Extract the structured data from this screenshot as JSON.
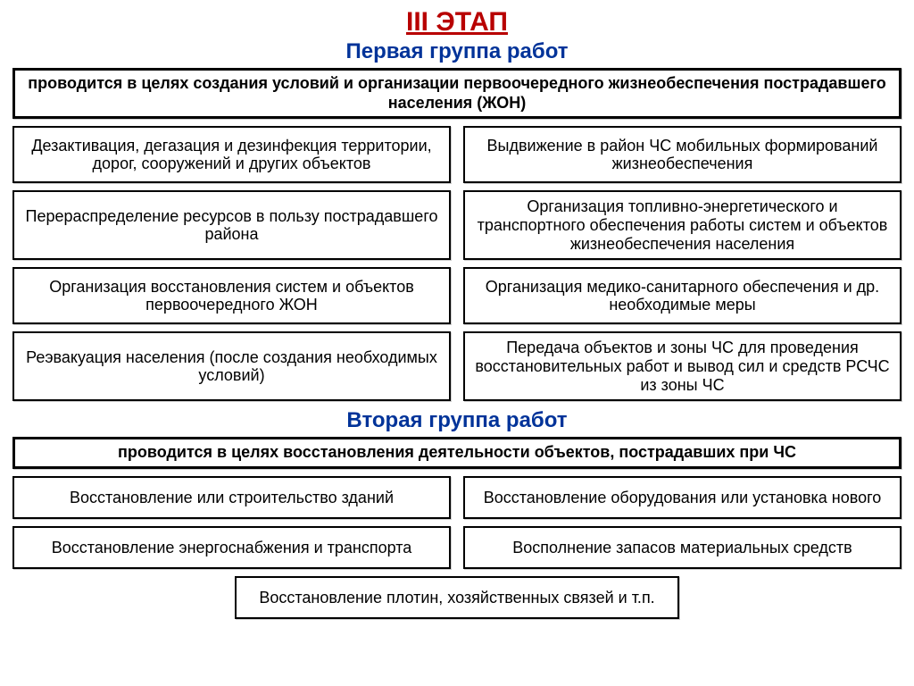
{
  "colors": {
    "title": "#b80000",
    "subtitle": "#003399",
    "border": "#000000",
    "text": "#000000",
    "background": "#ffffff"
  },
  "mainTitle": "III  ЭТАП",
  "group1": {
    "subtitle": "Первая группа работ",
    "header": "проводится в целях создания условий и организации первоочередного жизнеобеспечения пострадавшего населения (ЖОН)",
    "rows": [
      {
        "left": "Дезактивация, дегазация и дезинфекция территории, дорог, сооружений и других объектов",
        "right": "Выдвижение в район ЧС мобильных формирований жизнеобеспечения"
      },
      {
        "left": "Перераспределение ресурсов в пользу пострадавшего района",
        "right": "Организация топливно-энергетического и транспортного обеспечения работы систем и объектов жизнеобеспечения населения"
      },
      {
        "left": "Организация восстановления систем и объектов первоочередного ЖОН",
        "right": "Организация медико-санитарного обеспечения и др. необходимые меры"
      },
      {
        "left": "Реэвакуация населения (после создания необходимых условий)",
        "right": "Передача объектов и зоны ЧС для проведения восстановительных работ и вывод сил и средств РСЧС из зоны ЧС"
      }
    ]
  },
  "group2": {
    "subtitle": "Вторая группа работ",
    "header": "проводится в целях восстановления деятельности объектов, пострадавших при ЧС",
    "rows": [
      {
        "left": "Восстановление или строительство зданий",
        "right": "Восстановление оборудования или установка нового"
      },
      {
        "left": "Восстановление энергоснабжения и транспорта",
        "right": "Восполнение запасов материальных средств"
      }
    ],
    "bottom": "Восстановление плотин, хозяйственных связей и т.п."
  }
}
